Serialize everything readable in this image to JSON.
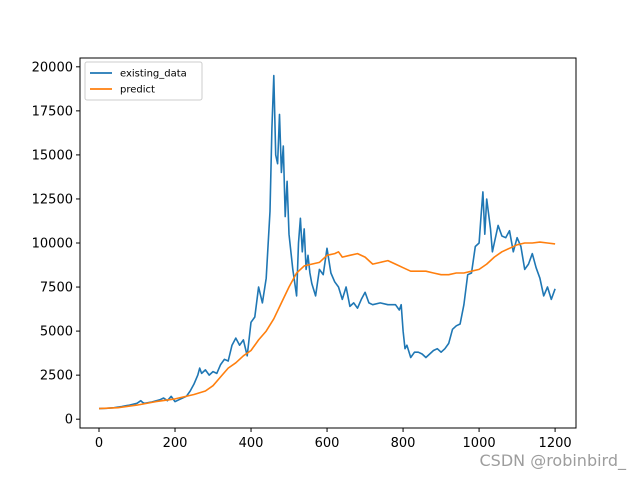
{
  "chart_data": {
    "type": "line",
    "title": "",
    "xlabel": "",
    "ylabel": "",
    "xlim": [
      -50,
      1255
    ],
    "ylim": [
      -500,
      20500
    ],
    "xticks": [
      0,
      200,
      400,
      600,
      800,
      1000,
      1200
    ],
    "yticks": [
      0,
      2500,
      5000,
      7500,
      10000,
      12500,
      15000,
      17500,
      20000
    ],
    "grid": false,
    "legend_position": "top-left",
    "series": [
      {
        "name": "existing_data",
        "color": "#1f77b4",
        "points": [
          [
            0,
            600
          ],
          [
            20,
            620
          ],
          [
            40,
            650
          ],
          [
            60,
            720
          ],
          [
            80,
            800
          ],
          [
            100,
            900
          ],
          [
            110,
            1050
          ],
          [
            115,
            950
          ],
          [
            120,
            900
          ],
          [
            140,
            980
          ],
          [
            160,
            1100
          ],
          [
            170,
            1200
          ],
          [
            180,
            1050
          ],
          [
            190,
            1300
          ],
          [
            200,
            1000
          ],
          [
            210,
            1100
          ],
          [
            220,
            1200
          ],
          [
            230,
            1300
          ],
          [
            240,
            1600
          ],
          [
            250,
            2000
          ],
          [
            260,
            2500
          ],
          [
            265,
            2900
          ],
          [
            270,
            2600
          ],
          [
            280,
            2800
          ],
          [
            290,
            2500
          ],
          [
            300,
            2700
          ],
          [
            310,
            2600
          ],
          [
            320,
            3100
          ],
          [
            330,
            3400
          ],
          [
            340,
            3300
          ],
          [
            350,
            4200
          ],
          [
            360,
            4600
          ],
          [
            370,
            4200
          ],
          [
            380,
            4500
          ],
          [
            390,
            3600
          ],
          [
            400,
            5500
          ],
          [
            410,
            5800
          ],
          [
            420,
            7500
          ],
          [
            430,
            6600
          ],
          [
            440,
            8000
          ],
          [
            450,
            11800
          ],
          [
            455,
            16500
          ],
          [
            460,
            19500
          ],
          [
            465,
            15000
          ],
          [
            470,
            14500
          ],
          [
            475,
            17300
          ],
          [
            480,
            14000
          ],
          [
            485,
            15500
          ],
          [
            490,
            11500
          ],
          [
            495,
            13500
          ],
          [
            500,
            10500
          ],
          [
            510,
            8500
          ],
          [
            520,
            7000
          ],
          [
            525,
            10000
          ],
          [
            530,
            11400
          ],
          [
            535,
            9500
          ],
          [
            540,
            10800
          ],
          [
            545,
            8500
          ],
          [
            550,
            9300
          ],
          [
            555,
            8300
          ],
          [
            560,
            7700
          ],
          [
            570,
            7000
          ],
          [
            580,
            8500
          ],
          [
            590,
            8200
          ],
          [
            600,
            9700
          ],
          [
            610,
            8300
          ],
          [
            620,
            7800
          ],
          [
            630,
            7500
          ],
          [
            640,
            6800
          ],
          [
            650,
            7500
          ],
          [
            660,
            6400
          ],
          [
            670,
            6600
          ],
          [
            680,
            6300
          ],
          [
            690,
            6800
          ],
          [
            700,
            7200
          ],
          [
            710,
            6600
          ],
          [
            720,
            6500
          ],
          [
            740,
            6600
          ],
          [
            760,
            6500
          ],
          [
            780,
            6500
          ],
          [
            790,
            6200
          ],
          [
            795,
            6500
          ],
          [
            800,
            5000
          ],
          [
            805,
            4000
          ],
          [
            810,
            4200
          ],
          [
            820,
            3500
          ],
          [
            830,
            3800
          ],
          [
            840,
            3800
          ],
          [
            850,
            3700
          ],
          [
            860,
            3500
          ],
          [
            870,
            3700
          ],
          [
            880,
            3900
          ],
          [
            890,
            4000
          ],
          [
            900,
            3800
          ],
          [
            910,
            4000
          ],
          [
            920,
            4300
          ],
          [
            930,
            5100
          ],
          [
            940,
            5300
          ],
          [
            950,
            5400
          ],
          [
            960,
            6500
          ],
          [
            970,
            8200
          ],
          [
            980,
            8300
          ],
          [
            990,
            9800
          ],
          [
            1000,
            10000
          ],
          [
            1005,
            11500
          ],
          [
            1010,
            12900
          ],
          [
            1015,
            10500
          ],
          [
            1020,
            12500
          ],
          [
            1030,
            10800
          ],
          [
            1035,
            9500
          ],
          [
            1040,
            10000
          ],
          [
            1050,
            11000
          ],
          [
            1060,
            10400
          ],
          [
            1070,
            10300
          ],
          [
            1080,
            10700
          ],
          [
            1090,
            9500
          ],
          [
            1100,
            10300
          ],
          [
            1110,
            9800
          ],
          [
            1120,
            8500
          ],
          [
            1130,
            8800
          ],
          [
            1140,
            9400
          ],
          [
            1150,
            8600
          ],
          [
            1160,
            8000
          ],
          [
            1170,
            7000
          ],
          [
            1180,
            7500
          ],
          [
            1190,
            6800
          ],
          [
            1200,
            7400
          ]
        ]
      },
      {
        "name": "predict",
        "color": "#ff7f0e",
        "points": [
          [
            0,
            600
          ],
          [
            50,
            650
          ],
          [
            100,
            800
          ],
          [
            150,
            1000
          ],
          [
            200,
            1150
          ],
          [
            250,
            1400
          ],
          [
            280,
            1600
          ],
          [
            300,
            1900
          ],
          [
            320,
            2400
          ],
          [
            340,
            2900
          ],
          [
            360,
            3200
          ],
          [
            380,
            3600
          ],
          [
            400,
            3900
          ],
          [
            420,
            4500
          ],
          [
            440,
            5000
          ],
          [
            460,
            5700
          ],
          [
            480,
            6600
          ],
          [
            500,
            7500
          ],
          [
            520,
            8300
          ],
          [
            540,
            8700
          ],
          [
            560,
            8800
          ],
          [
            580,
            8900
          ],
          [
            600,
            9300
          ],
          [
            620,
            9400
          ],
          [
            630,
            9500
          ],
          [
            640,
            9200
          ],
          [
            660,
            9300
          ],
          [
            680,
            9400
          ],
          [
            700,
            9200
          ],
          [
            720,
            8800
          ],
          [
            740,
            8900
          ],
          [
            760,
            9000
          ],
          [
            780,
            8800
          ],
          [
            800,
            8600
          ],
          [
            820,
            8400
          ],
          [
            840,
            8400
          ],
          [
            860,
            8400
          ],
          [
            880,
            8300
          ],
          [
            900,
            8200
          ],
          [
            920,
            8200
          ],
          [
            940,
            8300
          ],
          [
            960,
            8300
          ],
          [
            980,
            8400
          ],
          [
            1000,
            8500
          ],
          [
            1020,
            8800
          ],
          [
            1040,
            9200
          ],
          [
            1060,
            9500
          ],
          [
            1080,
            9700
          ],
          [
            1100,
            9900
          ],
          [
            1120,
            10000
          ],
          [
            1140,
            10000
          ],
          [
            1160,
            10050
          ],
          [
            1180,
            10000
          ],
          [
            1200,
            9950
          ]
        ]
      }
    ]
  },
  "watermark": "CSDN @robinbird_"
}
